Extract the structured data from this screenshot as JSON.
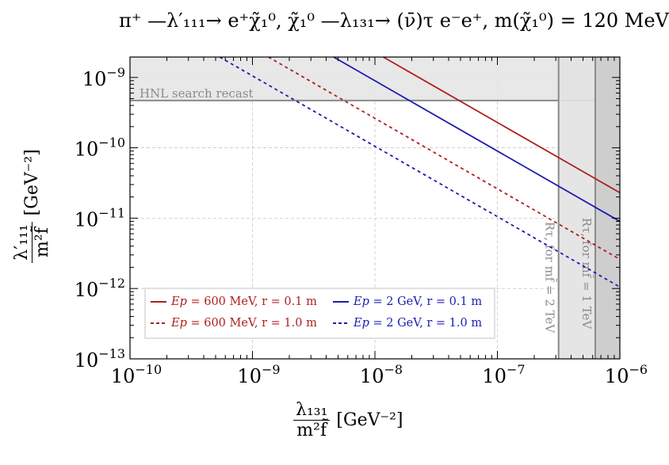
{
  "chart_data": {
    "type": "line",
    "title": "π⁺ —λ′₁₁₁→ e⁺χ̃₁⁰, χ̃₁⁰ —λ₁₃₁→ (ν̄)τ e⁻e⁺, m(χ̃₁⁰) = 120 MeV",
    "xlabel": {
      "num": "λ₁₃₁",
      "den": "m²f̃",
      "unit": "[GeV⁻²]"
    },
    "ylabel": {
      "num": "λ′₁₁₁",
      "den": "m²f̃",
      "unit": "[GeV⁻²]"
    },
    "xscale": "log",
    "yscale": "log",
    "xlim": [
      1e-10,
      1e-06
    ],
    "ylim": [
      1e-13,
      1.95e-09
    ],
    "grid": true,
    "x_ticks": [
      {
        "base": "10",
        "exp": "−10"
      },
      {
        "base": "10",
        "exp": "−9"
      },
      {
        "base": "10",
        "exp": "−8"
      },
      {
        "base": "10",
        "exp": "−7"
      },
      {
        "base": "10",
        "exp": "−6"
      }
    ],
    "y_ticks": [
      {
        "base": "10",
        "exp": "−13"
      },
      {
        "base": "10",
        "exp": "−12"
      },
      {
        "base": "10",
        "exp": "−11"
      },
      {
        "base": "10",
        "exp": "−10"
      },
      {
        "base": "10",
        "exp": "−9"
      }
    ],
    "series": [
      {
        "name": "Ep = 600 MeV, r = 0.1 m",
        "color": "#b01e1e",
        "style": "solid",
        "x": [
          1.17e-08,
          1e-06
        ],
        "y": [
          1.95e-09,
          2.3e-11
        ]
      },
      {
        "name": "Ep = 600 MeV, r = 1.0 m",
        "color": "#b01e1e",
        "style": "dashed",
        "x": [
          1.35e-09,
          1e-06
        ],
        "y": [
          1.95e-09,
          2.6e-12
        ]
      },
      {
        "name": "Ep = 2 GeV, r = 0.1 m",
        "color": "#1c1cb0",
        "style": "solid",
        "x": [
          4.6e-09,
          1e-06
        ],
        "y": [
          1.95e-09,
          9e-12
        ]
      },
      {
        "name": "Ep = 2 GeV, r = 1.0 m",
        "color": "#1c1cb0",
        "style": "dashed",
        "x": [
          5.4e-10,
          1e-06
        ],
        "y": [
          1.95e-09,
          1.05e-12
        ]
      }
    ],
    "legend_labels": [
      {
        "prefix": "Ep = ",
        "value": "600 MeV, r = 0.1 m"
      },
      {
        "prefix": "Ep = ",
        "value": "2 GeV, r = 0.1 m"
      },
      {
        "prefix": "Ep = ",
        "value": "600 MeV, r = 1.0 m"
      },
      {
        "prefix": "Ep = ",
        "value": "2 GeV, r = 1.0 m"
      }
    ],
    "legend_position": "lower-left",
    "excluded_regions": [
      {
        "label": "HNL search recast",
        "axis": "y",
        "above": 4.7e-10,
        "color": "#e4e4e4"
      },
      {
        "label": "Rτ, for mf̃ = 2 TeV",
        "axis": "x",
        "above": 3.16e-07,
        "color": "#e2e2e2"
      },
      {
        "label": "Rτ, for mf̃ = 1 TeV",
        "axis": "x",
        "above": 6.3e-07,
        "color": "#cbcbcb"
      }
    ]
  }
}
